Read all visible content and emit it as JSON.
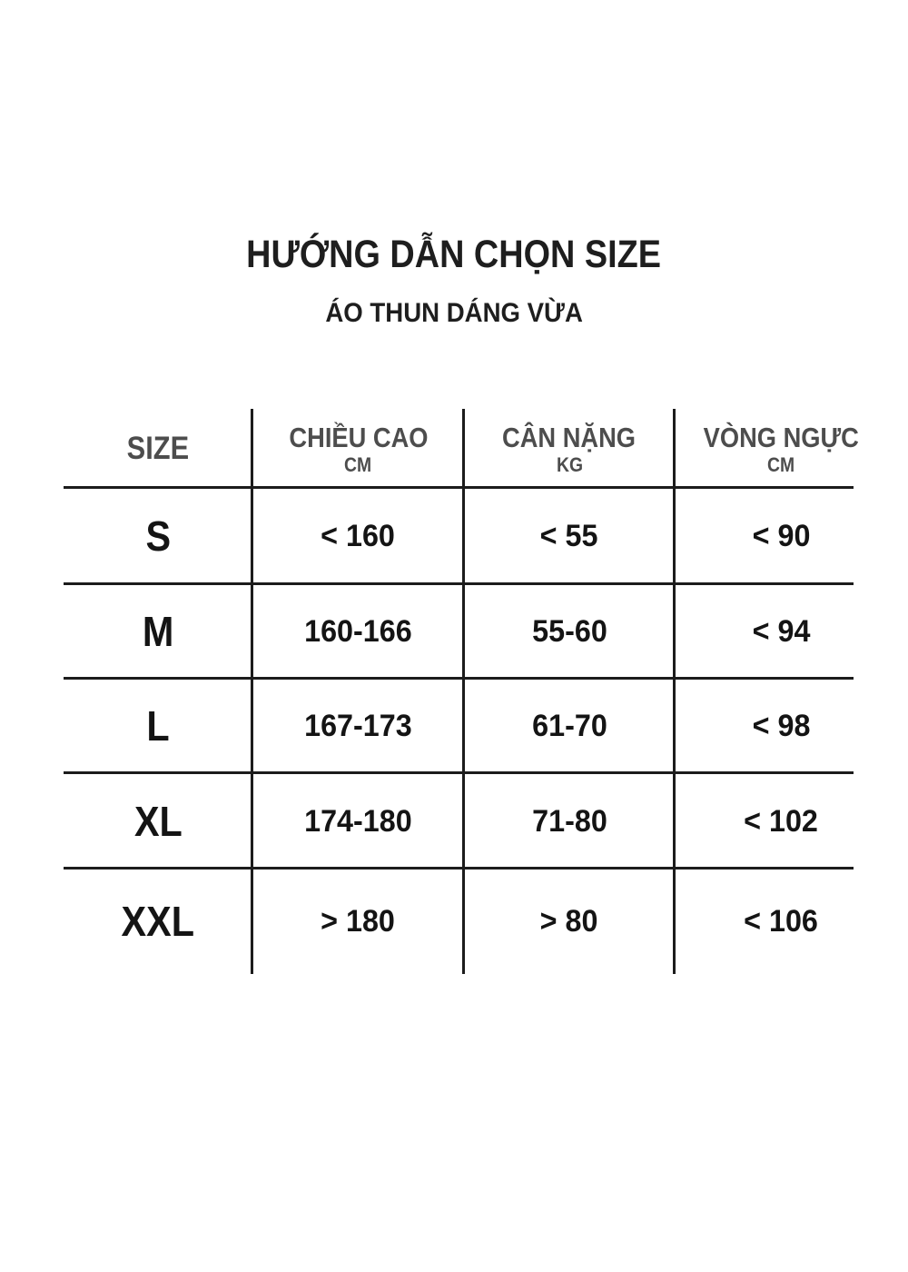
{
  "page": {
    "title": "HƯỚNG DẪN CHỌN SIZE",
    "subtitle": "ÁO THUN DÁNG VỪA"
  },
  "size_table": {
    "columns": [
      {
        "label": "SIZE",
        "unit": ""
      },
      {
        "label": "CHIỀU CAO",
        "unit": "CM"
      },
      {
        "label": "CÂN NẶNG",
        "unit": "KG"
      },
      {
        "label": "VÒNG NGỰC",
        "unit": "CM"
      }
    ],
    "rows": [
      [
        "S",
        "< 160",
        "< 55",
        "< 90"
      ],
      [
        "M",
        "160-166",
        "55-60",
        "< 94"
      ],
      [
        "L",
        "167-173",
        "61-70",
        "< 98"
      ],
      [
        "XL",
        "174-180",
        "71-80",
        "< 102"
      ],
      [
        "XXL",
        "> 180",
        "> 80",
        "< 106"
      ]
    ]
  },
  "colors": {
    "background": "#ffffff",
    "text_primary": "#141414",
    "text_title": "#1e1e1e",
    "text_header": "#4d4d4d",
    "line": "#1c1c1c"
  }
}
